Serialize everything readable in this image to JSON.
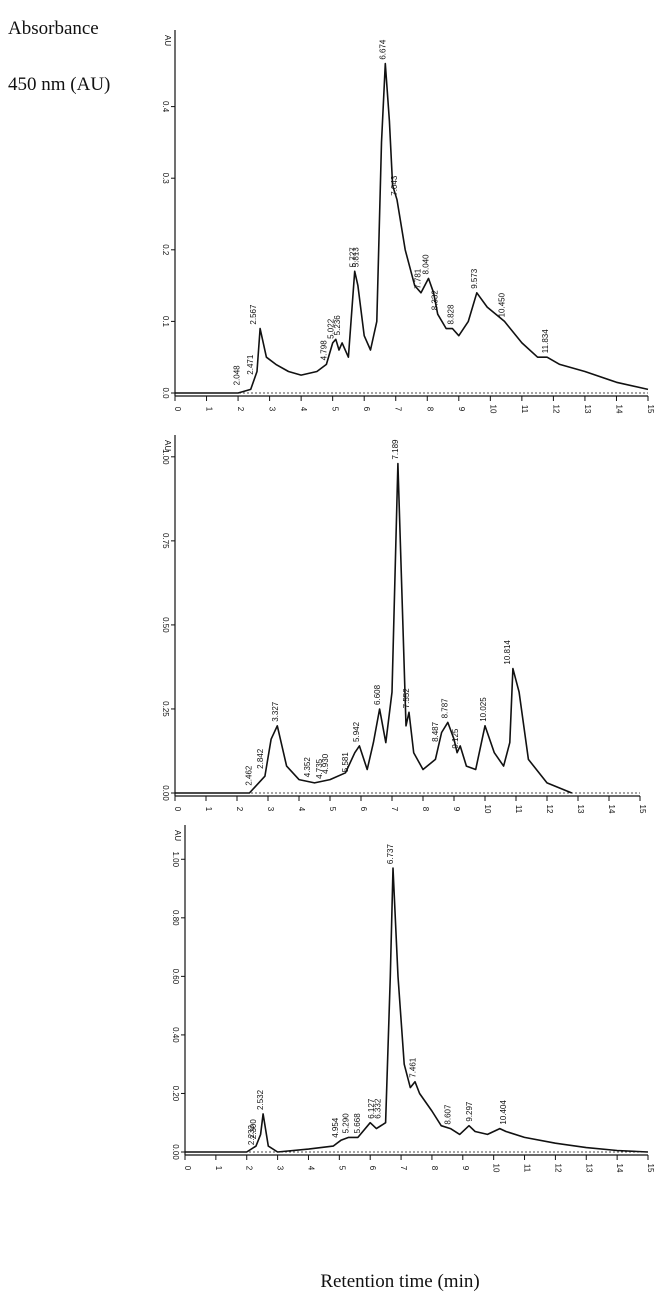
{
  "chart_data": [
    {
      "type": "line",
      "ylabel": [
        "Absorbance",
        "450 nm (AU)"
      ],
      "unit_label": "AU",
      "xlim": [
        0,
        15
      ],
      "xticks": [
        0,
        1,
        2,
        3,
        4,
        5,
        6,
        7,
        8,
        9,
        10,
        11,
        12,
        13,
        14,
        15
      ],
      "ylim": [
        0,
        0.5
      ],
      "yticks": [
        {
          "value": 0,
          "label": "0.0"
        },
        0.1,
        0.2,
        0.3,
        0.4
      ],
      "series": [
        {
          "color": "#111111",
          "x": [
            0,
            2.0,
            2.4,
            2.6,
            2.7,
            2.9,
            3.2,
            3.6,
            4.0,
            4.5,
            4.8,
            5.0,
            5.1,
            5.2,
            5.3,
            5.5,
            5.7,
            5.8,
            6.0,
            6.2,
            6.4,
            6.55,
            6.67,
            6.8,
            6.9,
            7.04,
            7.3,
            7.6,
            7.8,
            8.04,
            8.2,
            8.33,
            8.6,
            8.8,
            9.0,
            9.3,
            9.57,
            9.9,
            10.45,
            11.0,
            11.5,
            11.8,
            12.2,
            13,
            14,
            15
          ],
          "values": [
            0,
            0,
            0.005,
            0.03,
            0.09,
            0.05,
            0.04,
            0.03,
            0.025,
            0.03,
            0.04,
            0.07,
            0.075,
            0.06,
            0.07,
            0.05,
            0.17,
            0.15,
            0.08,
            0.06,
            0.1,
            0.35,
            0.46,
            0.38,
            0.29,
            0.27,
            0.2,
            0.15,
            0.14,
            0.16,
            0.14,
            0.11,
            0.09,
            0.09,
            0.08,
            0.1,
            0.14,
            0.12,
            0.1,
            0.07,
            0.05,
            0.05,
            0.04,
            0.03,
            0.015,
            0.005
          ]
        }
      ],
      "peaks": [
        {
          "value": 2.048,
          "label": "2.048",
          "y": 0.005
        },
        {
          "value": 2.471,
          "label": "2.471",
          "y": 0.02
        },
        {
          "value": 2.567,
          "label": "2.567",
          "y": 0.09
        },
        {
          "value": 4.798,
          "label": "4.798",
          "y": 0.04
        },
        {
          "value": 5.022,
          "label": "5.022",
          "y": 0.07
        },
        {
          "value": 5.236,
          "label": "5.236",
          "y": 0.075
        },
        {
          "value": 5.727,
          "label": "5.727",
          "y": 0.17
        },
        {
          "value": 5.813,
          "label": "5.813",
          "y": 0.17
        },
        {
          "value": 6.674,
          "label": "6.674",
          "y": 0.46
        },
        {
          "value": 7.043,
          "label": "7.043",
          "y": 0.27
        },
        {
          "value": 7.781,
          "label": "7.781",
          "y": 0.14
        },
        {
          "value": 8.04,
          "label": "8.040",
          "y": 0.16
        },
        {
          "value": 8.332,
          "label": "8.332",
          "y": 0.11
        },
        {
          "value": 8.828,
          "label": "8.828",
          "y": 0.09
        },
        {
          "value": 9.573,
          "label": "9.573",
          "y": 0.14
        },
        {
          "value": 10.45,
          "label": "10.450",
          "y": 0.1
        },
        {
          "value": 11.834,
          "label": "11.834",
          "y": 0.05
        }
      ]
    },
    {
      "type": "line",
      "unit_label": "AU",
      "xlim": [
        0,
        15
      ],
      "xticks": [
        0,
        1,
        2,
        3,
        4,
        5,
        6,
        7,
        8,
        9,
        10,
        11,
        12,
        13,
        14,
        15
      ],
      "ylim": [
        0,
        1.05
      ],
      "yticks": [
        {
          "value": 0,
          "label": "0.00"
        },
        0.25,
        {
          "value": 0.5,
          "label": "0.50"
        },
        0.75,
        {
          "value": 1,
          "label": "1.00"
        }
      ],
      "series": [
        {
          "color": "#111111",
          "x": [
            0,
            2.4,
            2.9,
            3.1,
            3.3,
            3.6,
            4.0,
            4.5,
            5.0,
            5.5,
            5.8,
            5.95,
            6.2,
            6.4,
            6.6,
            6.8,
            7.0,
            7.19,
            7.35,
            7.45,
            7.55,
            7.7,
            8.0,
            8.4,
            8.6,
            8.8,
            9.0,
            9.1,
            9.2,
            9.4,
            9.7,
            10.0,
            10.3,
            10.6,
            10.8,
            10.9,
            11.1,
            11.4,
            12,
            12.8
          ],
          "values": [
            0,
            0,
            0.05,
            0.16,
            0.2,
            0.08,
            0.04,
            0.03,
            0.04,
            0.06,
            0.12,
            0.14,
            0.07,
            0.15,
            0.25,
            0.15,
            0.3,
            0.98,
            0.5,
            0.2,
            0.24,
            0.12,
            0.07,
            0.1,
            0.18,
            0.21,
            0.16,
            0.12,
            0.14,
            0.08,
            0.07,
            0.2,
            0.12,
            0.08,
            0.15,
            0.37,
            0.3,
            0.1,
            0.03,
            0
          ]
        }
      ],
      "peaks": [
        {
          "value": 2.462,
          "label": "2.462",
          "y": 0.01
        },
        {
          "value": 2.842,
          "label": "2.842",
          "y": 0.06
        },
        {
          "value": 3.327,
          "label": "3.327",
          "y": 0.2
        },
        {
          "value": 4.352,
          "label": "4.352",
          "y": 0.035
        },
        {
          "value": 4.735,
          "label": "4.735",
          "y": 0.03
        },
        {
          "value": 4.93,
          "label": "4.930",
          "y": 0.045
        },
        {
          "value": 5.581,
          "label": "5.581",
          "y": 0.05
        },
        {
          "value": 5.942,
          "label": "5.942",
          "y": 0.14
        },
        {
          "value": 6.608,
          "label": "6.608",
          "y": 0.25
        },
        {
          "value": 7.189,
          "label": "7.189",
          "y": 0.98
        },
        {
          "value": 7.552,
          "label": "7.552",
          "y": 0.24
        },
        {
          "value": 8.487,
          "label": "8.487",
          "y": 0.14
        },
        {
          "value": 8.787,
          "label": "8.787",
          "y": 0.21
        },
        {
          "value": 9.125,
          "label": "9.125",
          "y": 0.12
        },
        {
          "value": 10.025,
          "label": "10.025",
          "y": 0.2
        },
        {
          "value": 10.814,
          "label": "10.814",
          "y": 0.37
        }
      ]
    },
    {
      "type": "line",
      "unit_label": "AU",
      "xlabel": "Retention time (min)",
      "xlim": [
        0,
        15
      ],
      "xticks": [
        0,
        1,
        2,
        3,
        4,
        5,
        6,
        7,
        8,
        9,
        10,
        11,
        12,
        13,
        14,
        15
      ],
      "ylim": [
        0,
        1.1
      ],
      "yticks": [
        {
          "value": 0,
          "label": "0.00"
        },
        {
          "value": 0.2,
          "label": "0.20"
        },
        {
          "value": 0.4,
          "label": "0.40"
        },
        {
          "value": 0.6,
          "label": "0.60"
        },
        {
          "value": 0.8,
          "label": "0.80"
        },
        {
          "value": 1,
          "label": "1.00"
        }
      ],
      "series": [
        {
          "color": "#111111",
          "x": [
            0,
            2.0,
            2.3,
            2.45,
            2.53,
            2.7,
            3.0,
            4.0,
            4.8,
            5.05,
            5.3,
            5.6,
            6.0,
            6.2,
            6.5,
            6.65,
            6.74,
            6.9,
            7.1,
            7.3,
            7.45,
            7.6,
            8.0,
            8.3,
            8.6,
            8.9,
            9.2,
            9.4,
            9.8,
            10.2,
            10.4,
            11,
            12,
            13,
            14,
            15
          ],
          "values": [
            0,
            0,
            0.02,
            0.06,
            0.13,
            0.02,
            0.0,
            0.01,
            0.02,
            0.04,
            0.05,
            0.05,
            0.1,
            0.08,
            0.1,
            0.6,
            0.97,
            0.6,
            0.3,
            0.22,
            0.24,
            0.2,
            0.14,
            0.09,
            0.08,
            0.06,
            0.09,
            0.07,
            0.06,
            0.08,
            0.07,
            0.05,
            0.03,
            0.015,
            0.005,
            0
          ]
        }
      ],
      "peaks": [
        {
          "value": 2.233,
          "label": "2.233",
          "y": 0.01
        },
        {
          "value": 2.3,
          "label": "2.300",
          "y": 0.03
        },
        {
          "value": 2.532,
          "label": "2.532",
          "y": 0.13
        },
        {
          "value": 4.954,
          "label": "4.954",
          "y": 0.035
        },
        {
          "value": 5.29,
          "label": "5.290",
          "y": 0.05
        },
        {
          "value": 5.668,
          "label": "5.668",
          "y": 0.05
        },
        {
          "value": 6.127,
          "label": "6.127",
          "y": 0.1
        },
        {
          "value": 6.332,
          "label": "6.332",
          "y": 0.1
        },
        {
          "value": 6.737,
          "label": "6.737",
          "y": 0.97
        },
        {
          "value": 7.461,
          "label": "7.461",
          "y": 0.24
        },
        {
          "value": 8.607,
          "label": "8.607",
          "y": 0.08
        },
        {
          "value": 9.297,
          "label": "9.297",
          "y": 0.09
        },
        {
          "value": 10.404,
          "label": "10.404",
          "y": 0.08
        }
      ]
    }
  ]
}
